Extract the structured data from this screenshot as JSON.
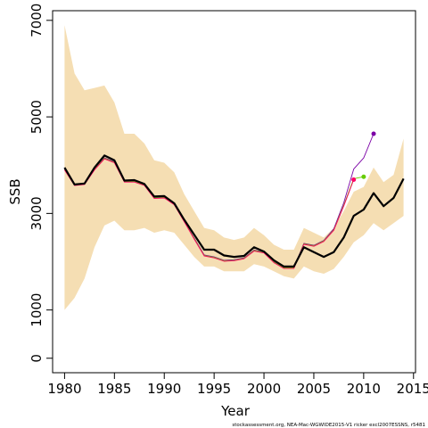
{
  "chart_data": {
    "type": "line",
    "xlabel": "Year",
    "ylabel": "SSB",
    "xlim": [
      1978.8,
      2015.2
    ],
    "ylim": [
      -300,
      7200
    ],
    "xticks": [
      "1980",
      "1985",
      "1990",
      "1995",
      "2000",
      "2005",
      "2010",
      "2015"
    ],
    "yticks": [
      "0",
      "1000",
      "3000",
      "5000",
      "7000"
    ],
    "grid": false,
    "legend": "none",
    "credit": "stockassessment.org, NEA-Mac-WGWIDE2015-V1  ricker  excl2007ESSNS, r5481",
    "band": {
      "color": "#f5deb3",
      "x": [
        1980,
        1981,
        1982,
        1983,
        1984,
        1985,
        1986,
        1987,
        1988,
        1989,
        1990,
        1991,
        1992,
        1993,
        1994,
        1995,
        1996,
        1997,
        1998,
        1999,
        2000,
        2001,
        2002,
        2003,
        2004,
        2005,
        2006,
        2007,
        2008,
        2009,
        2010,
        2011,
        2012,
        2013,
        2014
      ],
      "upper": [
        6900,
        5900,
        5550,
        5600,
        5650,
        5300,
        4650,
        4650,
        4450,
        4100,
        4050,
        3850,
        3400,
        3050,
        2700,
        2650,
        2500,
        2450,
        2500,
        2700,
        2550,
        2350,
        2250,
        2250,
        2700,
        2600,
        2500,
        2700,
        3050,
        3450,
        3550,
        3950,
        3650,
        3800,
        4550
      ],
      "lower": [
        1000,
        1250,
        1650,
        2300,
        2750,
        2850,
        2650,
        2650,
        2700,
        2600,
        2650,
        2600,
        2350,
        2100,
        1900,
        1900,
        1800,
        1800,
        1800,
        1950,
        1900,
        1800,
        1700,
        1650,
        1900,
        1800,
        1750,
        1850,
        2100,
        2400,
        2550,
        2800,
        2650,
        2800,
        2950
      ]
    },
    "series": [
      {
        "color": "#000000",
        "x": [
          1980,
          1981,
          1982,
          1983,
          1984,
          1985,
          1986,
          1987,
          1988,
          1989,
          1990,
          1991,
          1992,
          1993,
          1994,
          1995,
          1996,
          1997,
          1998,
          1999,
          2000,
          2001,
          2002,
          2003,
          2004,
          2005,
          2006,
          2007,
          2008,
          2009,
          2010,
          2011,
          2012,
          2013,
          2014
        ],
        "y": [
          3950,
          3600,
          3620,
          3950,
          4200,
          4100,
          3680,
          3690,
          3610,
          3350,
          3360,
          3210,
          2870,
          2560,
          2250,
          2250,
          2130,
          2100,
          2120,
          2300,
          2210,
          2030,
          1900,
          1900,
          2300,
          2200,
          2100,
          2200,
          2500,
          2950,
          3080,
          3420,
          3150,
          3320,
          3720
        ]
      },
      {
        "color": "#ff0066",
        "x": [
          1980,
          1981,
          1982,
          1983,
          1984,
          1985,
          1986,
          1987,
          1988,
          1989,
          1990,
          1991,
          1992,
          1993,
          1994,
          1995,
          1996,
          1997,
          1998,
          1999,
          2000,
          2001,
          2002,
          2003,
          2004,
          2005,
          2006,
          2007,
          2008,
          2009
        ],
        "y": [
          3900,
          3580,
          3600,
          3900,
          4130,
          4050,
          3650,
          3650,
          3580,
          3310,
          3320,
          3180,
          2830,
          2470,
          2120,
          2080,
          2010,
          2020,
          2060,
          2220,
          2180,
          1980,
          1860,
          1860,
          2360,
          2320,
          2420,
          2650,
          3150,
          3700
        ]
      },
      {
        "color": "#66cc00",
        "x": [
          1980,
          1981,
          1982,
          1983,
          1984,
          1985,
          1986,
          1987,
          1988,
          1989,
          1990,
          1991,
          1992,
          1993,
          1994,
          1995,
          1996,
          1997,
          1998,
          1999,
          2000,
          2001,
          2002,
          2003,
          2004,
          2005,
          2006,
          2007,
          2008,
          2009,
          2010
        ],
        "y": [
          3910,
          3590,
          3610,
          3910,
          4140,
          4060,
          3660,
          3660,
          3590,
          3320,
          3330,
          3190,
          2840,
          2480,
          2130,
          2090,
          2020,
          2030,
          2070,
          2230,
          2190,
          1990,
          1870,
          1870,
          2370,
          2330,
          2430,
          2660,
          3170,
          3720,
          3760
        ]
      },
      {
        "color": "#7b00a6",
        "x": [
          1980,
          1981,
          1982,
          1983,
          1984,
          1985,
          1986,
          1987,
          1988,
          1989,
          1990,
          1991,
          1992,
          1993,
          1994,
          1995,
          1996,
          1997,
          1998,
          1999,
          2000,
          2001,
          2002,
          2003,
          2004,
          2005,
          2006,
          2007,
          2008,
          2009,
          2010,
          2011
        ],
        "y": [
          3920,
          3600,
          3620,
          3920,
          4150,
          4070,
          3670,
          3670,
          3600,
          3330,
          3340,
          3200,
          2850,
          2490,
          2140,
          2100,
          2030,
          2040,
          2080,
          2240,
          2200,
          2000,
          1880,
          1880,
          2380,
          2340,
          2440,
          2680,
          3220,
          3920,
          4150,
          4650
        ]
      }
    ]
  }
}
